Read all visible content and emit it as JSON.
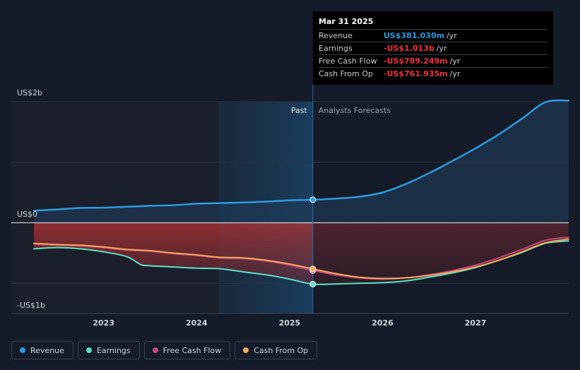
{
  "chart_data": {
    "type": "line",
    "unit": "USD",
    "y_axis_labels": [
      "US$2b",
      "US$0",
      "-US$1b"
    ],
    "x_ticks": [
      "2023",
      "2024",
      "2025",
      "2026",
      "2027"
    ],
    "past_label": "Past",
    "forecast_label": "Analysts Forecasts",
    "divider_date": "2025-03-31",
    "ylim": [
      -1.35,
      2.0
    ],
    "xlim": [
      2022.25,
      2028.0
    ],
    "series": [
      {
        "name": "Revenue",
        "color": "#2e9be0",
        "points": [
          [
            2022.25,
            0.2
          ],
          [
            2022.5,
            0.22
          ],
          [
            2022.75,
            0.245
          ],
          [
            2023.0,
            0.25
          ],
          [
            2023.25,
            0.265
          ],
          [
            2023.5,
            0.28
          ],
          [
            2023.75,
            0.29
          ],
          [
            2024.0,
            0.315
          ],
          [
            2024.25,
            0.325
          ],
          [
            2024.5,
            0.335
          ],
          [
            2024.75,
            0.35
          ],
          [
            2025.0,
            0.37
          ],
          [
            2025.25,
            0.381
          ],
          [
            2025.5,
            0.4
          ],
          [
            2025.75,
            0.43
          ],
          [
            2026.0,
            0.5
          ],
          [
            2026.25,
            0.64
          ],
          [
            2026.5,
            0.82
          ],
          [
            2026.75,
            1.02
          ],
          [
            2027.0,
            1.23
          ],
          [
            2027.25,
            1.46
          ],
          [
            2027.5,
            1.72
          ],
          [
            2027.75,
            1.99
          ],
          [
            2028.0,
            2.02
          ]
        ]
      },
      {
        "name": "Earnings",
        "color": "#5ce1c6",
        "points": [
          [
            2022.25,
            -0.43
          ],
          [
            2022.5,
            -0.41
          ],
          [
            2022.75,
            -0.43
          ],
          [
            2023.0,
            -0.48
          ],
          [
            2023.25,
            -0.56
          ],
          [
            2023.4,
            -0.69
          ],
          [
            2023.5,
            -0.71
          ],
          [
            2023.75,
            -0.73
          ],
          [
            2024.0,
            -0.75
          ],
          [
            2024.25,
            -0.76
          ],
          [
            2024.5,
            -0.81
          ],
          [
            2024.75,
            -0.86
          ],
          [
            2025.0,
            -0.93
          ],
          [
            2025.25,
            -1.013
          ],
          [
            2025.5,
            -1.01
          ],
          [
            2025.75,
            -1.0
          ],
          [
            2026.0,
            -0.99
          ],
          [
            2026.25,
            -0.96
          ],
          [
            2026.5,
            -0.9
          ],
          [
            2026.75,
            -0.83
          ],
          [
            2027.0,
            -0.74
          ],
          [
            2027.25,
            -0.62
          ],
          [
            2027.5,
            -0.49
          ],
          [
            2027.75,
            -0.34
          ],
          [
            2028.0,
            -0.3
          ]
        ]
      },
      {
        "name": "Free Cash Flow",
        "color": "#c8457f",
        "points": [
          [
            2022.25,
            -0.35
          ],
          [
            2022.5,
            -0.37
          ],
          [
            2022.75,
            -0.38
          ],
          [
            2023.0,
            -0.41
          ],
          [
            2023.25,
            -0.45
          ],
          [
            2023.5,
            -0.47
          ],
          [
            2023.75,
            -0.51
          ],
          [
            2024.0,
            -0.54
          ],
          [
            2024.25,
            -0.58
          ],
          [
            2024.5,
            -0.59
          ],
          [
            2024.75,
            -0.63
          ],
          [
            2025.0,
            -0.7
          ],
          [
            2025.25,
            -0.789
          ],
          [
            2025.5,
            -0.86
          ],
          [
            2025.75,
            -0.91
          ],
          [
            2026.0,
            -0.93
          ],
          [
            2026.25,
            -0.91
          ],
          [
            2026.5,
            -0.86
          ],
          [
            2026.75,
            -0.79
          ],
          [
            2027.0,
            -0.7
          ],
          [
            2027.25,
            -0.58
          ],
          [
            2027.5,
            -0.44
          ],
          [
            2027.75,
            -0.29
          ],
          [
            2028.0,
            -0.24
          ]
        ]
      },
      {
        "name": "Cash From Op",
        "color": "#f3a85a",
        "points": [
          [
            2022.25,
            -0.34
          ],
          [
            2022.5,
            -0.36
          ],
          [
            2022.75,
            -0.37
          ],
          [
            2023.0,
            -0.4
          ],
          [
            2023.25,
            -0.44
          ],
          [
            2023.5,
            -0.46
          ],
          [
            2023.75,
            -0.5
          ],
          [
            2024.0,
            -0.53
          ],
          [
            2024.25,
            -0.57
          ],
          [
            2024.5,
            -0.58
          ],
          [
            2024.75,
            -0.62
          ],
          [
            2025.0,
            -0.68
          ],
          [
            2025.25,
            -0.762
          ],
          [
            2025.5,
            -0.84
          ],
          [
            2025.75,
            -0.9
          ],
          [
            2026.0,
            -0.92
          ],
          [
            2026.25,
            -0.91
          ],
          [
            2026.5,
            -0.87
          ],
          [
            2026.75,
            -0.81
          ],
          [
            2027.0,
            -0.73
          ],
          [
            2027.25,
            -0.62
          ],
          [
            2027.5,
            -0.48
          ],
          [
            2027.75,
            -0.33
          ],
          [
            2028.0,
            -0.27
          ]
        ]
      }
    ],
    "highlight_points": [
      {
        "series": "Revenue",
        "x": 2025.25,
        "y": 0.381
      },
      {
        "series": "Earnings",
        "x": 2025.25,
        "y": -1.013
      },
      {
        "series": "Free Cash Flow",
        "x": 2025.25,
        "y": -0.789
      },
      {
        "series": "Cash From Op",
        "x": 2025.25,
        "y": -0.762
      }
    ]
  },
  "tooltip": {
    "date": "Mar 31 2025",
    "rows": [
      {
        "label": "Revenue",
        "value": "US$381.030m",
        "unit": "/yr",
        "sign": "pos"
      },
      {
        "label": "Earnings",
        "value": "-US$1.013b",
        "unit": "/yr",
        "sign": "neg"
      },
      {
        "label": "Free Cash Flow",
        "value": "-US$789.249m",
        "unit": "/yr",
        "sign": "neg"
      },
      {
        "label": "Cash From Op",
        "value": "-US$761.935m",
        "unit": "/yr",
        "sign": "neg"
      }
    ]
  },
  "legend": [
    {
      "label": "Revenue",
      "color": "#2e9be0"
    },
    {
      "label": "Earnings",
      "color": "#5ce1c6"
    },
    {
      "label": "Free Cash Flow",
      "color": "#c8457f"
    },
    {
      "label": "Cash From Op",
      "color": "#f3a85a"
    }
  ],
  "colors": {
    "background": "#151b28",
    "past_region": "#1b2130",
    "highlight_band": "#16324b",
    "revenue_fill": "#1d3550",
    "negative_fill": "#7a2a32"
  }
}
